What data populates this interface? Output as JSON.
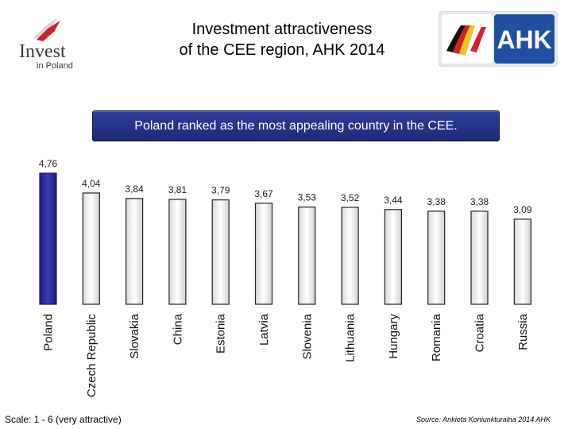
{
  "header": {
    "title_line1": "Investment attractiveness",
    "title_line2": "of the CEE region, AHK 2014"
  },
  "logos": {
    "left_line1": "Invest",
    "left_line2": "in Poland",
    "right_text": "AHK"
  },
  "banner": {
    "text": "Poland ranked as the most appealing country in the CEE."
  },
  "chart_data": {
    "type": "bar",
    "title": "",
    "categories": [
      "Poland",
      "Czech Republic",
      "Slovakia",
      "China",
      "Estonia",
      "Latvia",
      "Slovenia",
      "Lithuania",
      "Hungary",
      "Romania",
      "Croatia",
      "Russia"
    ],
    "values": [
      4.76,
      4.04,
      3.84,
      3.81,
      3.79,
      3.67,
      3.53,
      3.52,
      3.44,
      3.38,
      3.38,
      3.09
    ],
    "value_labels": [
      "4,76",
      "4,04",
      "3,84",
      "3,81",
      "3,79",
      "3,67",
      "3,53",
      "3,52",
      "3,44",
      "3,38",
      "3,38",
      "3,09"
    ],
    "highlight_index": 0,
    "highlight_color": "#2b2d9a",
    "bar_color": "#f2f2f2",
    "ylim": [
      0,
      4.76
    ],
    "xlabel": "",
    "ylabel": ""
  },
  "footer": {
    "scale_note": "Scale: 1 - 6 (very attractive)",
    "source": "Source: Ankieta Koniunkturalna 2014 AHK"
  },
  "colors": {
    "banner_bg": "#26348a",
    "ahk_blue": "#1f4fa0"
  }
}
